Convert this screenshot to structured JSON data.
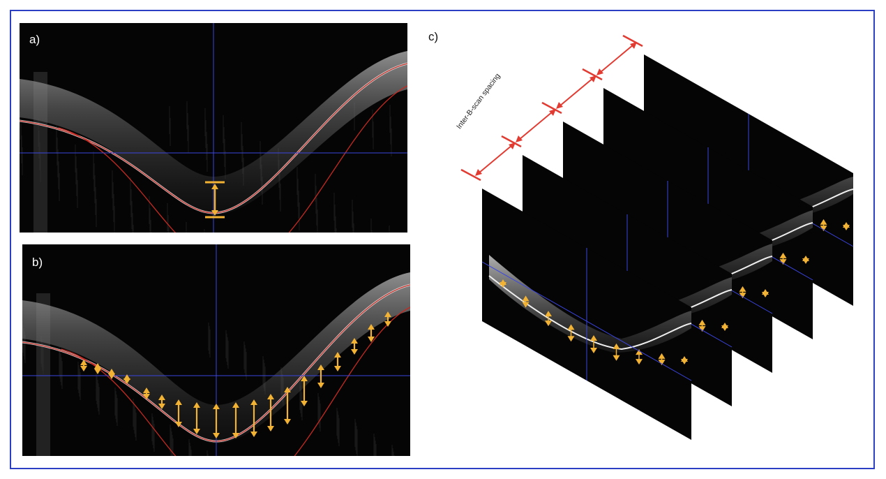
{
  "figure": {
    "border_color": "#2b3fc4",
    "panels": [
      {
        "id": "a",
        "label": "a)"
      },
      {
        "id": "b",
        "label": "b)"
      },
      {
        "id": "c",
        "label": "c)"
      }
    ],
    "spacing_label": "Inter-B-scan spacing",
    "colors": {
      "crosshair": "#3b45e0",
      "boundary": "#c42a22",
      "thickness_arrow": "#f2b233",
      "spacing_arrow": "#e23b32",
      "scan_background": "#050505"
    },
    "icons": [
      "double-headed-arrow-icon",
      "crosshair"
    ],
    "stack_slices": 5
  }
}
